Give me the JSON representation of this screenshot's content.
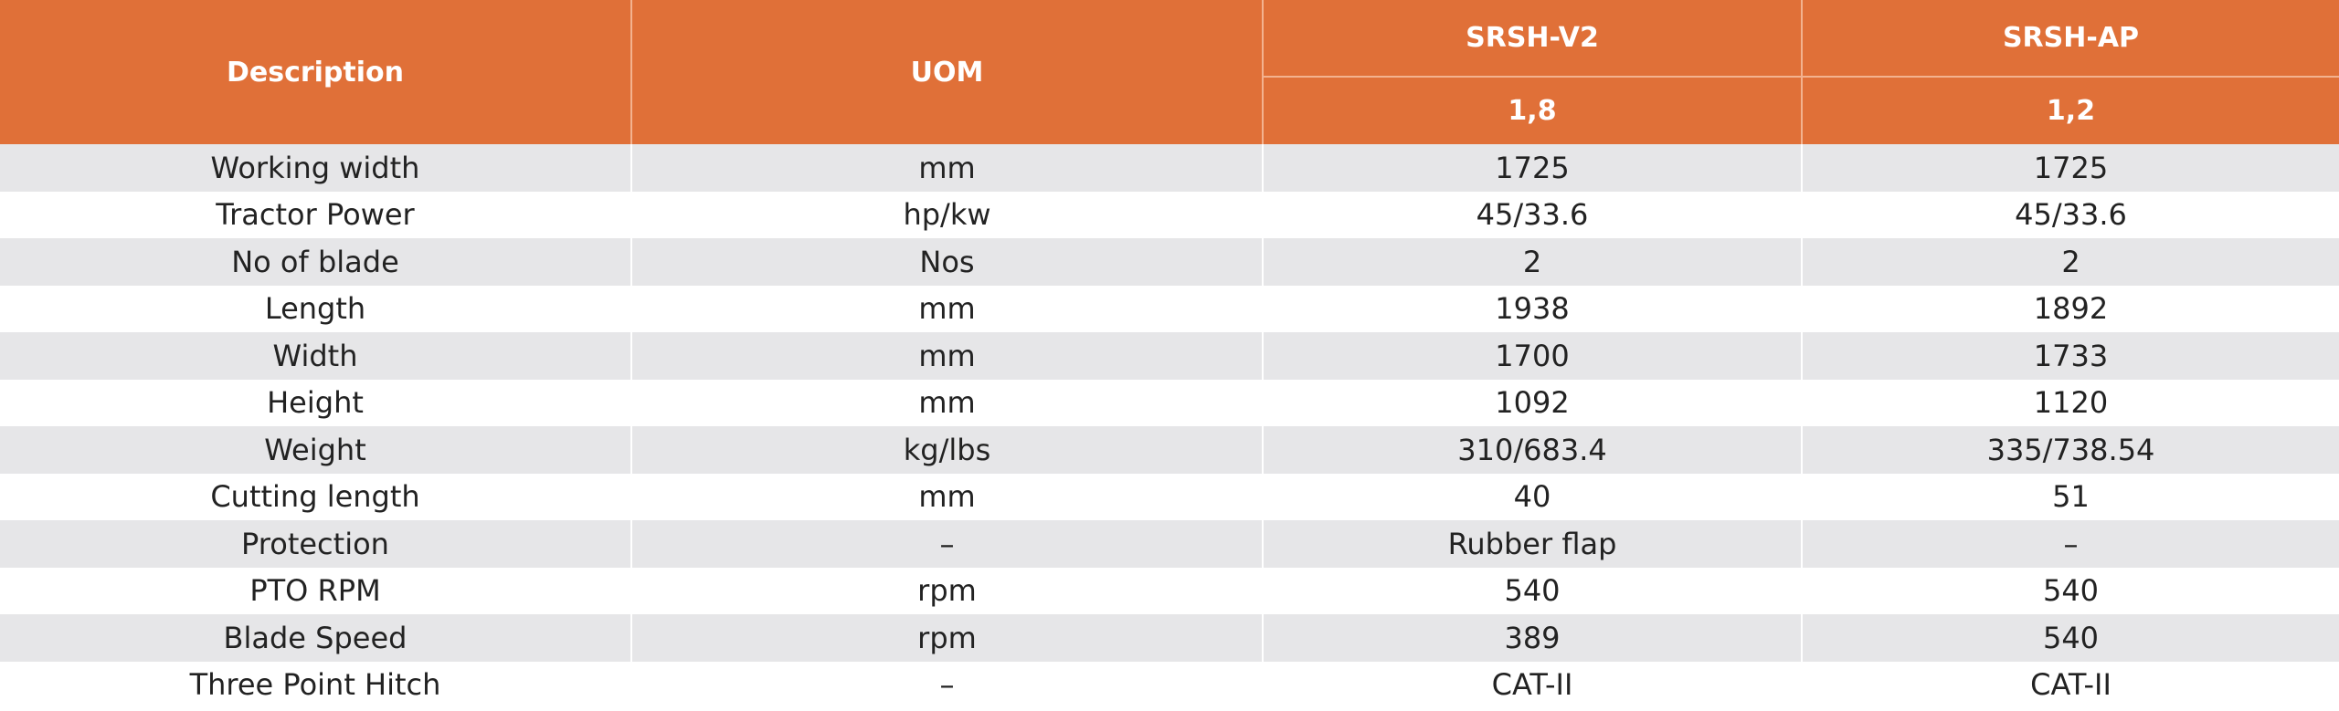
{
  "header": {
    "description": "Description",
    "uom": "UOM",
    "models": [
      "SRSH-V2",
      "SRSH-AP"
    ],
    "sizes": [
      "1,8",
      "1,2"
    ]
  },
  "table": {
    "rows": [
      [
        "Working width",
        "mm",
        "1725",
        "1725"
      ],
      [
        "Tractor Power",
        "hp/kw",
        "45/33.6",
        "45/33.6"
      ],
      [
        "No of blade",
        "Nos",
        "2",
        "2"
      ],
      [
        "Length",
        "mm",
        "1938",
        "1892"
      ],
      [
        "Width",
        "mm",
        "1700",
        "1733"
      ],
      [
        "Height",
        "mm",
        "1092",
        "1120"
      ],
      [
        "Weight",
        "kg/lbs",
        "310/683.4",
        "335/738.54"
      ],
      [
        "Cutting length",
        "mm",
        "40",
        "51"
      ],
      [
        "Protection",
        "–",
        "Rubber flap",
        "–"
      ],
      [
        "PTO RPM",
        "rpm",
        "540",
        "540"
      ],
      [
        "Blade Speed",
        "rpm",
        "389",
        "540"
      ],
      [
        "Three Point Hitch",
        "–",
        "CAT-II",
        "CAT-II"
      ]
    ]
  }
}
